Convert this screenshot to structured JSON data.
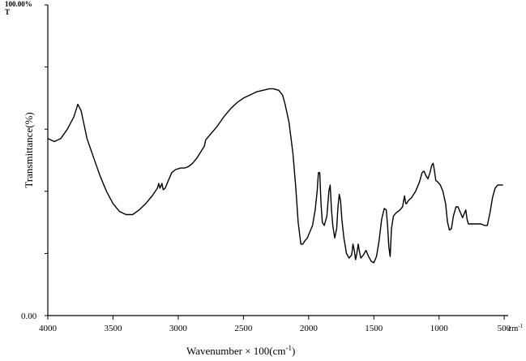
{
  "chart_data": {
    "type": "line",
    "title": "",
    "xlabel": "Wavenumber × 100(cm",
    "xlabel_superscript": "-1",
    "xlabel_close": ")",
    "ylabel": "Transmittance(%)",
    "y_top_label": "100.00%",
    "y_top_letter": "T",
    "y_bottom_label": "0.00",
    "x_unit_label": "cm",
    "x_unit_superscript": "-1",
    "xlim": [
      4000,
      470
    ],
    "ylim": [
      0,
      100
    ],
    "xticks": [
      {
        "value": 4000,
        "label": "4000"
      },
      {
        "value": 3500,
        "label": "3500"
      },
      {
        "value": 3000,
        "label": "3000"
      },
      {
        "value": 2500,
        "label": "2500"
      },
      {
        "value": 2000,
        "label": "2000"
      },
      {
        "value": 1500,
        "label": "1500"
      },
      {
        "value": 1000,
        "label": "1000"
      },
      {
        "value": 500,
        "label": "500"
      }
    ],
    "yticks": [
      0,
      20,
      40,
      60,
      80,
      100
    ],
    "grid": false,
    "series": [
      {
        "name": "",
        "color": "#000000",
        "points": [
          [
            4000,
            57
          ],
          [
            3950,
            56
          ],
          [
            3900,
            57
          ],
          [
            3850,
            60
          ],
          [
            3800,
            64
          ],
          [
            3770,
            68
          ],
          [
            3745,
            66
          ],
          [
            3720,
            61
          ],
          [
            3700,
            57
          ],
          [
            3650,
            51
          ],
          [
            3600,
            45
          ],
          [
            3550,
            40
          ],
          [
            3500,
            36
          ],
          [
            3450,
            33.5
          ],
          [
            3400,
            32.5
          ],
          [
            3350,
            32.5
          ],
          [
            3300,
            34
          ],
          [
            3250,
            36
          ],
          [
            3200,
            38.5
          ],
          [
            3160,
            41
          ],
          [
            3150,
            42.5
          ],
          [
            3140,
            41
          ],
          [
            3125,
            42.5
          ],
          [
            3115,
            40.5
          ],
          [
            3100,
            41
          ],
          [
            3080,
            43
          ],
          [
            3050,
            46
          ],
          [
            3020,
            47
          ],
          [
            2980,
            47.5
          ],
          [
            2950,
            47.5
          ],
          [
            2920,
            48
          ],
          [
            2890,
            49
          ],
          [
            2860,
            50.5
          ],
          [
            2830,
            52.5
          ],
          [
            2800,
            54.5
          ],
          [
            2790,
            56.5
          ],
          [
            2760,
            58
          ],
          [
            2700,
            61
          ],
          [
            2650,
            64
          ],
          [
            2600,
            66.5
          ],
          [
            2550,
            68.5
          ],
          [
            2500,
            70
          ],
          [
            2450,
            71
          ],
          [
            2400,
            72
          ],
          [
            2350,
            72.5
          ],
          [
            2300,
            73
          ],
          [
            2270,
            73
          ],
          [
            2230,
            72.5
          ],
          [
            2200,
            71
          ],
          [
            2180,
            68
          ],
          [
            2150,
            62
          ],
          [
            2120,
            52
          ],
          [
            2100,
            42
          ],
          [
            2080,
            30
          ],
          [
            2060,
            23
          ],
          [
            2045,
            23
          ],
          [
            2030,
            24
          ],
          [
            2010,
            25
          ],
          [
            1990,
            27
          ],
          [
            1970,
            29
          ],
          [
            1950,
            34
          ],
          [
            1935,
            40
          ],
          [
            1925,
            46
          ],
          [
            1915,
            46
          ],
          [
            1905,
            36
          ],
          [
            1895,
            30
          ],
          [
            1880,
            29
          ],
          [
            1860,
            32
          ],
          [
            1845,
            40
          ],
          [
            1835,
            42
          ],
          [
            1825,
            34
          ],
          [
            1815,
            29
          ],
          [
            1800,
            25
          ],
          [
            1785,
            28
          ],
          [
            1775,
            35
          ],
          [
            1765,
            39
          ],
          [
            1755,
            37
          ],
          [
            1745,
            31
          ],
          [
            1730,
            25
          ],
          [
            1710,
            20
          ],
          [
            1690,
            18.5
          ],
          [
            1670,
            19.5
          ],
          [
            1660,
            23
          ],
          [
            1650,
            21
          ],
          [
            1640,
            18
          ],
          [
            1630,
            20
          ],
          [
            1620,
            23
          ],
          [
            1610,
            20.5
          ],
          [
            1600,
            18.5
          ],
          [
            1580,
            19.5
          ],
          [
            1560,
            21
          ],
          [
            1540,
            19
          ],
          [
            1520,
            17.5
          ],
          [
            1500,
            17
          ],
          [
            1480,
            19
          ],
          [
            1460,
            24
          ],
          [
            1440,
            31
          ],
          [
            1420,
            34.5
          ],
          [
            1405,
            34
          ],
          [
            1395,
            29
          ],
          [
            1385,
            22
          ],
          [
            1375,
            19
          ],
          [
            1365,
            28
          ],
          [
            1350,
            32
          ],
          [
            1330,
            33
          ],
          [
            1300,
            34
          ],
          [
            1280,
            35
          ],
          [
            1265,
            38.5
          ],
          [
            1255,
            36
          ],
          [
            1250,
            36
          ],
          [
            1235,
            37
          ],
          [
            1210,
            38
          ],
          [
            1180,
            40
          ],
          [
            1150,
            43
          ],
          [
            1130,
            46
          ],
          [
            1115,
            46.5
          ],
          [
            1100,
            45
          ],
          [
            1085,
            44
          ],
          [
            1070,
            46
          ],
          [
            1055,
            48.5
          ],
          [
            1045,
            49
          ],
          [
            1035,
            46.5
          ],
          [
            1025,
            43.5
          ],
          [
            1010,
            43
          ],
          [
            990,
            42
          ],
          [
            970,
            40
          ],
          [
            950,
            36
          ],
          [
            935,
            30
          ],
          [
            920,
            27.5
          ],
          [
            905,
            28
          ],
          [
            890,
            32
          ],
          [
            870,
            35
          ],
          [
            855,
            35
          ],
          [
            835,
            33
          ],
          [
            820,
            31.5
          ],
          [
            805,
            33
          ],
          [
            795,
            34
          ],
          [
            785,
            31
          ],
          [
            775,
            29.5
          ],
          [
            760,
            29.5
          ],
          [
            740,
            29.5
          ],
          [
            710,
            29.5
          ],
          [
            680,
            29.5
          ],
          [
            650,
            29
          ],
          [
            630,
            29
          ],
          [
            610,
            33
          ],
          [
            590,
            38
          ],
          [
            570,
            41
          ],
          [
            550,
            42
          ],
          [
            530,
            42
          ],
          [
            510,
            42
          ]
        ]
      }
    ]
  }
}
